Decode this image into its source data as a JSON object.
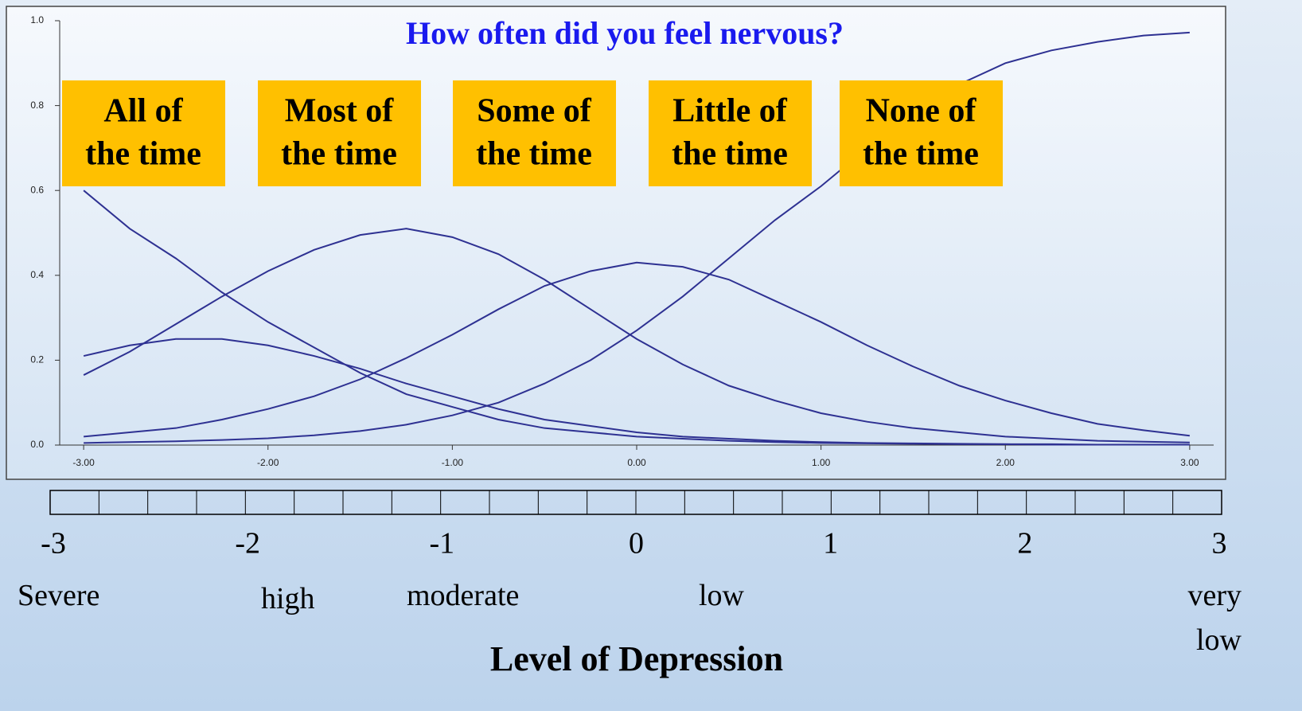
{
  "chart_data": {
    "type": "line",
    "title": "How often did you feel nervous?",
    "annotations": [
      [
        "All of",
        "the time"
      ],
      [
        "Most of",
        "the time"
      ],
      [
        "Some of",
        "the time"
      ],
      [
        "Little of",
        "the time"
      ],
      [
        "None of",
        "the time"
      ]
    ],
    "x": [
      -3,
      -2.75,
      -2.5,
      -2.25,
      -2,
      -1.75,
      -1.5,
      -1.25,
      -1,
      -0.75,
      -0.5,
      -0.25,
      0,
      0.25,
      0.5,
      0.75,
      1,
      1.25,
      1.5,
      1.75,
      2,
      2.25,
      2.5,
      2.75,
      3
    ],
    "series": [
      {
        "color": "#2e3192",
        "values": [
          0.6,
          0.51,
          0.44,
          0.36,
          0.29,
          0.23,
          0.17,
          0.12,
          0.09,
          0.06,
          0.04,
          0.03,
          0.02,
          0.015,
          0.01,
          0.007,
          0.005,
          0.004,
          0.003,
          0.002,
          0.002,
          0.001,
          0.001,
          0.001,
          0.001
        ]
      },
      {
        "color": "#2e3192",
        "values": [
          0.21,
          0.235,
          0.25,
          0.25,
          0.235,
          0.21,
          0.18,
          0.145,
          0.115,
          0.085,
          0.06,
          0.045,
          0.03,
          0.02,
          0.015,
          0.01,
          0.007,
          0.005,
          0.004,
          0.003,
          0.002,
          0.002,
          0.001,
          0.001,
          0.001
        ]
      },
      {
        "color": "#2e3192",
        "values": [
          0.165,
          0.22,
          0.285,
          0.35,
          0.41,
          0.46,
          0.495,
          0.51,
          0.49,
          0.45,
          0.39,
          0.32,
          0.25,
          0.19,
          0.14,
          0.105,
          0.075,
          0.055,
          0.04,
          0.03,
          0.02,
          0.015,
          0.01,
          0.008,
          0.006
        ]
      },
      {
        "color": "#2e3192",
        "values": [
          0.02,
          0.03,
          0.04,
          0.06,
          0.085,
          0.115,
          0.155,
          0.205,
          0.26,
          0.32,
          0.375,
          0.41,
          0.43,
          0.42,
          0.39,
          0.34,
          0.29,
          0.235,
          0.185,
          0.14,
          0.105,
          0.075,
          0.05,
          0.035,
          0.022
        ]
      },
      {
        "color": "#2e3192",
        "values": [
          0.005,
          0.007,
          0.009,
          0.012,
          0.016,
          0.023,
          0.033,
          0.048,
          0.07,
          0.1,
          0.145,
          0.2,
          0.27,
          0.35,
          0.44,
          0.53,
          0.61,
          0.7,
          0.78,
          0.85,
          0.9,
          0.93,
          0.95,
          0.965,
          0.972
        ]
      }
    ],
    "xlim": [
      -3.13,
      3.13
    ],
    "ylim": [
      0,
      1
    ],
    "xticks": [
      {
        "value": -3,
        "label": "-3.00"
      },
      {
        "value": -2,
        "label": "-2.00"
      },
      {
        "value": -1,
        "label": "-1.00"
      },
      {
        "value": 0,
        "label": "0.00"
      },
      {
        "value": 1,
        "label": "1.00"
      },
      {
        "value": 2,
        "label": "2.00"
      },
      {
        "value": 3,
        "label": "3.00"
      }
    ],
    "yticks": [
      {
        "value": 0,
        "label": "0.0"
      },
      {
        "value": 0.2,
        "label": "0.2"
      },
      {
        "value": 0.4,
        "label": "0.4"
      },
      {
        "value": 0.6,
        "label": "0.6"
      },
      {
        "value": 0.8,
        "label": "0.8"
      },
      {
        "value": 1,
        "label": "1.0"
      }
    ],
    "scale_ticks": [
      -3,
      -2,
      -1,
      0,
      1,
      2,
      3
    ],
    "scale_lim": [
      -3,
      3
    ],
    "levels": [
      "Severe",
      "high",
      "moderate",
      "low",
      "very low"
    ],
    "xlabel": "Level of Depression"
  }
}
